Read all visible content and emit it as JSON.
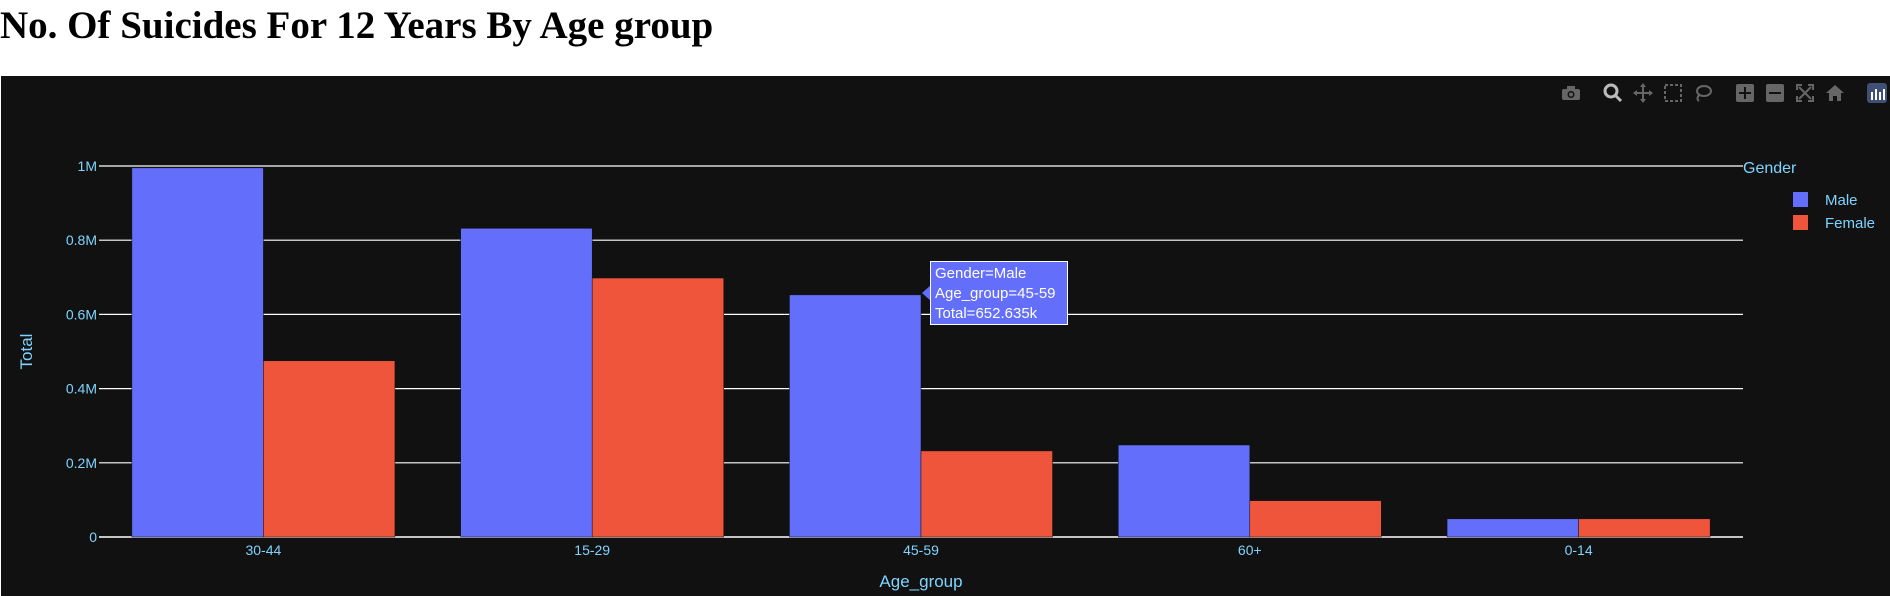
{
  "page": {
    "title": "No. Of Suicides For 12 Years By Age group"
  },
  "modebar": {
    "icons": [
      "camera-icon",
      "zoom-icon",
      "pan-icon",
      "box-select-icon",
      "lasso-icon",
      "zoom-in-icon",
      "zoom-out-icon",
      "autoscale-icon",
      "reset-axes-icon",
      "plotly-logo-icon"
    ]
  },
  "tooltip": {
    "line1": "Gender=Male",
    "line2": "Age_group=45-59",
    "line3": "Total=652.635k"
  },
  "colors": {
    "male": "#636efa",
    "female": "#ef553b",
    "background": "#111111",
    "grid": "#ffffff",
    "axis_text": "#7fd4ff"
  },
  "chart_data": {
    "type": "bar",
    "title": "No. Of Suicides For 12 Years By Age group",
    "xlabel": "Age_group",
    "ylabel": "Total",
    "categories": [
      "30-44",
      "15-29",
      "45-59",
      "60+",
      "0-14"
    ],
    "series": [
      {
        "name": "Male",
        "color": "#636efa",
        "values": [
          995000,
          832000,
          652635,
          248000,
          49000
        ]
      },
      {
        "name": "Female",
        "color": "#ef553b",
        "values": [
          475000,
          698000,
          232000,
          98000,
          49000
        ]
      }
    ],
    "ylim": [
      0,
      1000000
    ],
    "yticks": [
      {
        "value": 0,
        "label": "0"
      },
      {
        "value": 200000,
        "label": "0.2M"
      },
      {
        "value": 400000,
        "label": "0.4M"
      },
      {
        "value": 600000,
        "label": "0.6M"
      },
      {
        "value": 800000,
        "label": "0.8M"
      },
      {
        "value": 1000000,
        "label": "1M"
      }
    ],
    "legend": {
      "title": "Gender",
      "position": "top-right"
    },
    "grid": true
  }
}
